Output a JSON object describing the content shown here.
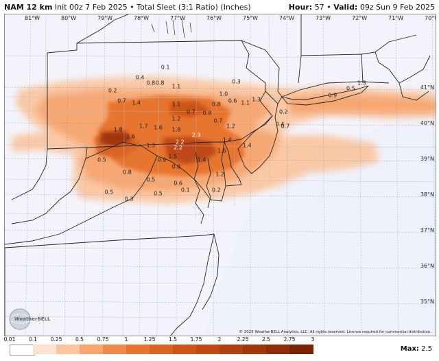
{
  "header": {
    "model": "NAM 12 km",
    "init": "Init 00z 7 Feb 2025",
    "product": "Total Sleet (3:1 Ratio) (Inches)",
    "hour_label": "Hour:",
    "hour": "57",
    "valid_label": "Valid:",
    "valid": "09z Sun 9 Feb 2025"
  },
  "map": {
    "lon_labels": [
      "81°W",
      "80°W",
      "79°W",
      "78°W",
      "77°W",
      "76°W",
      "75°W",
      "74°W",
      "73°W",
      "72°W",
      "71°W",
      "70°W"
    ],
    "lat_labels": [
      "41°N",
      "40°N",
      "39°N",
      "38°N",
      "37°N",
      "36°N",
      "35°N"
    ],
    "values": [
      {
        "t": "0.1",
        "lon": -77.3,
        "lat": 41.6
      },
      {
        "t": "0.4",
        "lon": -78.0,
        "lat": 41.3
      },
      {
        "t": "0.8",
        "lon": -77.7,
        "lat": 41.15
      },
      {
        "t": "0.8",
        "lon": -77.45,
        "lat": 41.15
      },
      {
        "t": "1.1",
        "lon": -77.0,
        "lat": 41.05
      },
      {
        "t": "0.2",
        "lon": -78.75,
        "lat": 40.95
      },
      {
        "t": "1.0",
        "lon": -75.7,
        "lat": 40.85
      },
      {
        "t": "0.3",
        "lon": -75.35,
        "lat": 41.2
      },
      {
        "t": "0.7",
        "lon": -78.5,
        "lat": 40.65
      },
      {
        "t": "1.4",
        "lon": -78.1,
        "lat": 40.6
      },
      {
        "t": "1.1",
        "lon": -77.0,
        "lat": 40.55
      },
      {
        "t": "0.8",
        "lon": -75.9,
        "lat": 40.55
      },
      {
        "t": "0.6",
        "lon": -75.45,
        "lat": 40.65
      },
      {
        "t": "1.1",
        "lon": -75.1,
        "lat": 40.6
      },
      {
        "t": "1.3",
        "lon": -74.8,
        "lat": 40.7
      },
      {
        "t": "0.7",
        "lon": -76.6,
        "lat": 40.35
      },
      {
        "t": "0.8",
        "lon": -76.15,
        "lat": 40.3
      },
      {
        "t": "1.2",
        "lon": -77.0,
        "lat": 40.15
      },
      {
        "t": "0.7",
        "lon": -75.85,
        "lat": 40.1
      },
      {
        "t": "0.2",
        "lon": -74.05,
        "lat": 40.35
      },
      {
        "t": "0.4",
        "lon": -74.15,
        "lat": 40.0
      },
      {
        "t": "1.2",
        "lon": -75.5,
        "lat": 39.95
      },
      {
        "t": "0.7",
        "lon": -74.0,
        "lat": 39.95
      },
      {
        "t": "1.7",
        "lon": -77.9,
        "lat": 39.95
      },
      {
        "t": "1.6",
        "lon": -77.5,
        "lat": 39.9
      },
      {
        "t": "1.8",
        "lon": -77.0,
        "lat": 39.85
      },
      {
        "t": "1.8",
        "lon": -78.6,
        "lat": 39.85
      },
      {
        "t": "1.6",
        "lon": -78.25,
        "lat": 39.65
      },
      {
        "t": "2.3",
        "lon": -76.45,
        "lat": 39.7
      },
      {
        "t": "2.2",
        "lon": -76.9,
        "lat": 39.5
      },
      {
        "t": "2.2",
        "lon": -76.95,
        "lat": 39.35
      },
      {
        "t": "1.3",
        "lon": -77.7,
        "lat": 39.4
      },
      {
        "t": "1.4",
        "lon": -75.6,
        "lat": 39.55
      },
      {
        "t": "1.6",
        "lon": -75.75,
        "lat": 39.25
      },
      {
        "t": "1.4",
        "lon": -75.05,
        "lat": 39.4
      },
      {
        "t": "1.4",
        "lon": -76.3,
        "lat": 39.0
      },
      {
        "t": "0.5",
        "lon": -79.05,
        "lat": 39.0
      },
      {
        "t": "1.5",
        "lon": -77.1,
        "lat": 39.1
      },
      {
        "t": "0.9",
        "lon": -77.4,
        "lat": 39.0
      },
      {
        "t": "0.8",
        "lon": -77.0,
        "lat": 38.8
      },
      {
        "t": "0.8",
        "lon": -78.35,
        "lat": 38.65
      },
      {
        "t": "0.5",
        "lon": -77.7,
        "lat": 38.45
      },
      {
        "t": "0.6",
        "lon": -76.95,
        "lat": 38.35
      },
      {
        "t": "1.2",
        "lon": -75.8,
        "lat": 38.6
      },
      {
        "t": "0.5",
        "lon": -78.85,
        "lat": 38.1
      },
      {
        "t": "0.3",
        "lon": -78.3,
        "lat": 37.9
      },
      {
        "t": "0.5",
        "lon": -77.5,
        "lat": 38.05
      },
      {
        "t": "0.1",
        "lon": -76.75,
        "lat": 38.15
      },
      {
        "t": "0.2",
        "lon": -75.9,
        "lat": 38.15
      },
      {
        "t": "0.9",
        "lon": -72.7,
        "lat": 40.8
      },
      {
        "t": "0.5",
        "lon": -72.2,
        "lat": 41.0
      },
      {
        "t": "1.3",
        "lon": -71.9,
        "lat": 41.15
      }
    ]
  },
  "copyright": "© 2025 WeatherBELL Analytics, LLC. All rights reserved. License required for commercial distribution.",
  "logo": {
    "text": "WeatherBELL"
  },
  "colorbar": {
    "ticks": [
      "0.01",
      "0.1",
      "0.25",
      "0.5",
      "0.75",
      "1",
      "1.25",
      "1.5",
      "1.75",
      "2",
      "2.25",
      "2.5",
      "2.75",
      "3"
    ],
    "colors": [
      "#ffffff",
      "#fde3cf",
      "#fbc49c",
      "#f7a670",
      "#f08a4a",
      "#e8742d",
      "#db6520",
      "#cc5516",
      "#bf4a12",
      "#b0400e",
      "#a0360b",
      "#8e2d08",
      "#7b2405"
    ]
  },
  "max": {
    "label": "Max:",
    "value": "2.5"
  }
}
